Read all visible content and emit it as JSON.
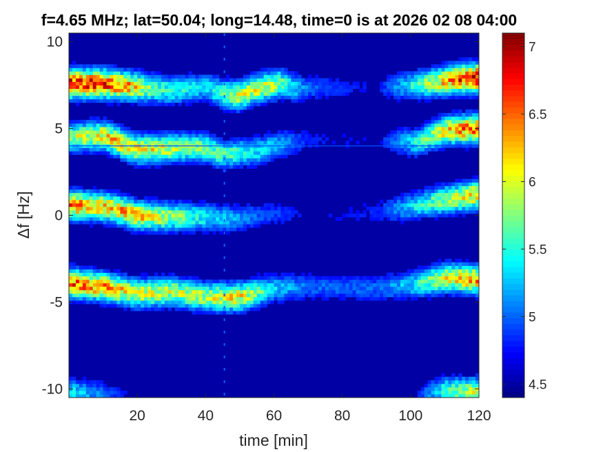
{
  "chart_data": {
    "type": "heatmap",
    "title": "f=4.65 MHz;  lat=50.04; long=14.48, time=0 is at 2026 02 08 04:00",
    "xlabel": "time [min]",
    "ylabel": "Δf [Hz]",
    "xlim": [
      0,
      120
    ],
    "ylim": [
      -10.5,
      10.5
    ],
    "x_ticks": [
      20,
      40,
      60,
      80,
      100,
      120
    ],
    "y_ticks": [
      10,
      5,
      0,
      -5,
      -10
    ],
    "colorbar": {
      "colormap": "jet",
      "clim": [
        4.4,
        7.1
      ],
      "ticks": [
        4.5,
        5,
        5.5,
        6,
        6.5,
        7
      ],
      "tick_labels": [
        "4.5",
        "5",
        "5.5",
        "6",
        "6.5",
        "7"
      ]
    },
    "background_value": 4.5,
    "horizontal_line_freq": 4.0,
    "vertical_line_time": 45.5,
    "traces": [
      {
        "name": "band-1",
        "points": [
          [
            0,
            7.6
          ],
          [
            10,
            7.6
          ],
          [
            20,
            7.4
          ],
          [
            30,
            7.2
          ],
          [
            40,
            7.4
          ],
          [
            45,
            7.0
          ],
          [
            50,
            6.9
          ],
          [
            55,
            7.3
          ],
          [
            62,
            7.6
          ],
          [
            68,
            7.3
          ],
          [
            80,
            7.4
          ],
          [
            95,
            7.4
          ],
          [
            105,
            7.6
          ],
          [
            115,
            7.9
          ],
          [
            120,
            7.9
          ]
        ],
        "peak": [
          [
            0,
            6.8
          ],
          [
            15,
            6.5
          ],
          [
            25,
            5.6
          ],
          [
            40,
            5.3
          ],
          [
            50,
            6.0
          ],
          [
            60,
            5.9
          ],
          [
            70,
            5.0
          ],
          [
            90,
            4.7
          ],
          [
            100,
            5.4
          ],
          [
            110,
            6.2
          ],
          [
            120,
            6.9
          ]
        ]
      },
      {
        "name": "band-2",
        "points": [
          [
            0,
            4.5
          ],
          [
            10,
            4.6
          ],
          [
            15,
            4.2
          ],
          [
            20,
            3.8
          ],
          [
            30,
            3.9
          ],
          [
            40,
            3.9
          ],
          [
            45,
            3.5
          ],
          [
            55,
            3.7
          ],
          [
            62,
            4.1
          ],
          [
            70,
            4.3
          ],
          [
            95,
            4.3
          ],
          [
            102,
            4.2
          ],
          [
            110,
            4.9
          ],
          [
            120,
            5.0
          ]
        ],
        "peak": [
          [
            0,
            5.8
          ],
          [
            15,
            6.2
          ],
          [
            25,
            6.0
          ],
          [
            40,
            5.7
          ],
          [
            50,
            5.5
          ],
          [
            60,
            5.3
          ],
          [
            70,
            4.8
          ],
          [
            90,
            4.7
          ],
          [
            100,
            5.3
          ],
          [
            110,
            6.1
          ],
          [
            120,
            6.6
          ]
        ]
      },
      {
        "name": "band-3",
        "points": [
          [
            0,
            0.6
          ],
          [
            10,
            0.5
          ],
          [
            15,
            0.3
          ],
          [
            20,
            0.0
          ],
          [
            30,
            -0.1
          ],
          [
            40,
            -0.1
          ],
          [
            48,
            -0.2
          ],
          [
            55,
            0.0
          ],
          [
            62,
            0.1
          ],
          [
            70,
            0.0
          ],
          [
            90,
            0.2
          ],
          [
            100,
            0.5
          ],
          [
            110,
            0.9
          ],
          [
            120,
            1.2
          ]
        ],
        "peak": [
          [
            0,
            6.4
          ],
          [
            10,
            6.2
          ],
          [
            18,
            6.3
          ],
          [
            30,
            5.8
          ],
          [
            40,
            5.4
          ],
          [
            55,
            5.0
          ],
          [
            70,
            4.7
          ],
          [
            90,
            4.8
          ],
          [
            100,
            5.3
          ],
          [
            110,
            5.8
          ],
          [
            120,
            6.2
          ]
        ]
      },
      {
        "name": "band-4",
        "points": [
          [
            0,
            -3.9
          ],
          [
            10,
            -4.1
          ],
          [
            15,
            -4.3
          ],
          [
            20,
            -4.5
          ],
          [
            30,
            -4.4
          ],
          [
            40,
            -4.7
          ],
          [
            50,
            -4.7
          ],
          [
            60,
            -4.2
          ],
          [
            70,
            -4.1
          ],
          [
            90,
            -4.2
          ],
          [
            100,
            -4.0
          ],
          [
            110,
            -3.6
          ],
          [
            120,
            -3.7
          ]
        ],
        "peak": [
          [
            0,
            6.5
          ],
          [
            10,
            6.3
          ],
          [
            20,
            6.0
          ],
          [
            30,
            5.9
          ],
          [
            40,
            5.9
          ],
          [
            50,
            6.1
          ],
          [
            60,
            5.3
          ],
          [
            70,
            5.0
          ],
          [
            90,
            5.0
          ],
          [
            100,
            5.3
          ],
          [
            110,
            6.0
          ],
          [
            120,
            6.3
          ]
        ]
      },
      {
        "name": "band-5",
        "points": [
          [
            0,
            -10.2
          ],
          [
            10,
            -10.3
          ],
          [
            20,
            -10.4
          ],
          [
            100,
            -10.4
          ],
          [
            110,
            -10.1
          ],
          [
            120,
            -10.2
          ]
        ],
        "peak": [
          [
            0,
            5.4
          ],
          [
            10,
            5.0
          ],
          [
            20,
            4.6
          ],
          [
            100,
            4.6
          ],
          [
            110,
            5.5
          ],
          [
            120,
            6.0
          ]
        ]
      }
    ]
  }
}
